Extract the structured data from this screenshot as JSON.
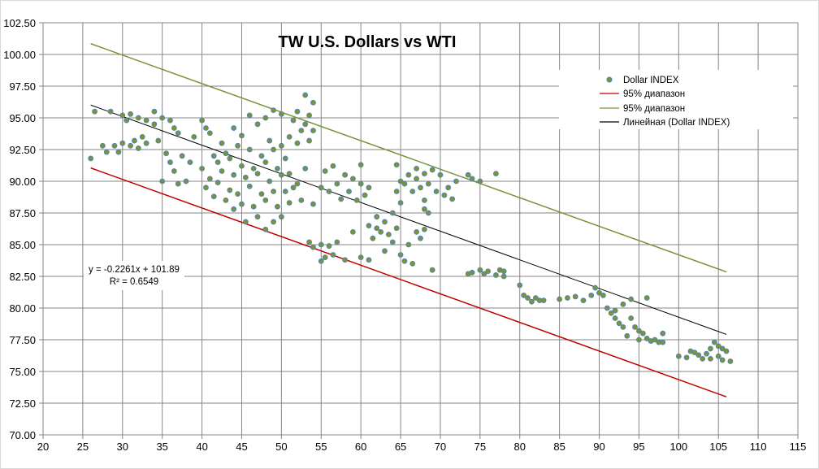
{
  "chart_data": {
    "type": "scatter",
    "title": "TW U.S. Dollars  vs WTI",
    "xlabel": "",
    "ylabel": "",
    "xlim": [
      20,
      115
    ],
    "ylim": [
      70,
      102.5
    ],
    "x_ticks": [
      "20",
      "25",
      "30",
      "35",
      "40",
      "45",
      "50",
      "55",
      "60",
      "65",
      "70",
      "75",
      "80",
      "85",
      "90",
      "95",
      "100",
      "105",
      "110",
      "115"
    ],
    "y_ticks": [
      "70.00",
      "72.50",
      "75.00",
      "77.50",
      "80.00",
      "82.50",
      "85.00",
      "87.50",
      "90.00",
      "92.50",
      "95.00",
      "97.50",
      "100.00",
      "102.50"
    ],
    "grid": true,
    "legend_position": "top-right",
    "legend": [
      {
        "label": "Dollar INDEX",
        "kind": "marker"
      },
      {
        "label": "95% диапазон",
        "kind": "line",
        "color": "#c00000"
      },
      {
        "label": "95% диапазон",
        "kind": "line",
        "color": "#77933c"
      },
      {
        "label": "Линейная (Dollar INDEX)",
        "kind": "line",
        "color": "#000000"
      }
    ],
    "trendline": {
      "equation": "y = -0.2261x + 101.89",
      "r_squared": "R² = 0.6549",
      "slope": -0.2261,
      "intercept": 101.89,
      "x_range": [
        26,
        106
      ],
      "color": "#000000"
    },
    "band_upper": {
      "points": [
        [
          26,
          100.85
        ],
        [
          106,
          82.85
        ]
      ],
      "color": "#77933c"
    },
    "band_lower": {
      "points": [
        [
          26,
          91.05
        ],
        [
          106,
          73.0
        ]
      ],
      "color": "#c00000"
    },
    "marker_fill": "#77933c",
    "marker_edge": "#4f81bd",
    "series": [
      {
        "name": "Dollar INDEX",
        "points": [
          [
            26,
            91.8
          ],
          [
            26.5,
            95.5
          ],
          [
            27.5,
            92.8
          ],
          [
            28,
            92.3
          ],
          [
            28.5,
            95.5
          ],
          [
            29,
            92.8
          ],
          [
            29.5,
            92.3
          ],
          [
            30,
            95.2
          ],
          [
            30,
            93
          ],
          [
            30.5,
            94.8
          ],
          [
            31,
            95.3
          ],
          [
            31,
            92.8
          ],
          [
            31.5,
            93.2
          ],
          [
            32,
            95
          ],
          [
            32,
            92.6
          ],
          [
            32.5,
            93.5
          ],
          [
            33,
            94.8
          ],
          [
            33,
            93
          ],
          [
            34,
            95.5
          ],
          [
            34,
            94.5
          ],
          [
            34.5,
            93.2
          ],
          [
            35,
            95
          ],
          [
            35,
            90
          ],
          [
            35.5,
            92.2
          ],
          [
            36,
            94.8
          ],
          [
            36,
            91.5
          ],
          [
            36.5,
            94.2
          ],
          [
            36.5,
            90.8
          ],
          [
            37,
            93.8
          ],
          [
            37,
            89.8
          ],
          [
            37.5,
            92
          ],
          [
            38,
            90
          ],
          [
            38.5,
            91.5
          ],
          [
            39,
            93.5
          ],
          [
            40,
            94.8
          ],
          [
            40.5,
            94.2
          ],
          [
            40,
            91
          ],
          [
            40.5,
            89.5
          ],
          [
            41,
            93.8
          ],
          [
            41,
            90.2
          ],
          [
            41.5,
            92
          ],
          [
            41.5,
            88.8
          ],
          [
            42,
            91.5
          ],
          [
            42,
            89.9
          ],
          [
            42.5,
            93
          ],
          [
            42.5,
            90.8
          ],
          [
            43,
            92.2
          ],
          [
            43,
            88.5
          ],
          [
            43.5,
            91.8
          ],
          [
            43.5,
            89.3
          ],
          [
            44,
            94.2
          ],
          [
            44,
            90.5
          ],
          [
            44,
            87.8
          ],
          [
            44.5,
            92.8
          ],
          [
            44.5,
            89
          ],
          [
            45,
            93.6
          ],
          [
            45,
            91.2
          ],
          [
            45,
            88.2
          ],
          [
            45.5,
            90.3
          ],
          [
            45.5,
            86.8
          ],
          [
            46,
            95.2
          ],
          [
            46,
            92.5
          ],
          [
            46,
            89.6
          ],
          [
            46.5,
            91
          ],
          [
            46.5,
            88
          ],
          [
            47,
            94.5
          ],
          [
            47,
            90.6
          ],
          [
            47,
            87.2
          ],
          [
            47.5,
            92
          ],
          [
            47.5,
            89
          ],
          [
            48,
            95
          ],
          [
            48,
            91.5
          ],
          [
            48,
            88.5
          ],
          [
            48,
            86.2
          ],
          [
            48.5,
            93.2
          ],
          [
            48.5,
            90
          ],
          [
            49,
            95.6
          ],
          [
            49,
            92.5
          ],
          [
            49,
            89.2
          ],
          [
            49,
            86.8
          ],
          [
            49.5,
            91
          ],
          [
            49.5,
            88
          ],
          [
            50,
            95.3
          ],
          [
            50,
            92.8
          ],
          [
            50,
            90.5
          ],
          [
            50,
            87.2
          ],
          [
            50.5,
            91.8
          ],
          [
            50.5,
            89.2
          ],
          [
            51,
            93.5
          ],
          [
            51,
            90.6
          ],
          [
            51,
            88.3
          ],
          [
            51.5,
            94.8
          ],
          [
            51.5,
            89.5
          ],
          [
            52,
            95.5
          ],
          [
            52,
            93
          ],
          [
            52,
            89.8
          ],
          [
            52.5,
            94
          ],
          [
            52.5,
            88.5
          ],
          [
            53,
            96.8
          ],
          [
            53,
            94.5
          ],
          [
            53,
            91
          ],
          [
            53.5,
            95.2
          ],
          [
            53.5,
            93.2
          ],
          [
            54,
            96.2
          ],
          [
            54,
            94
          ],
          [
            54,
            88.2
          ],
          [
            53.5,
            85.2
          ],
          [
            54,
            84.8
          ],
          [
            55,
            85
          ],
          [
            55.5,
            84
          ],
          [
            56,
            84.9
          ],
          [
            56.5,
            84.2
          ],
          [
            57,
            85.2
          ],
          [
            58,
            83.8
          ],
          [
            55,
            83.7
          ],
          [
            55,
            89.5
          ],
          [
            55.5,
            90.8
          ],
          [
            56,
            89.2
          ],
          [
            56.5,
            91.2
          ],
          [
            57,
            89.8
          ],
          [
            57.5,
            88.6
          ],
          [
            58,
            90.5
          ],
          [
            58.5,
            89.2
          ],
          [
            59,
            90.2
          ],
          [
            59.5,
            88.5
          ],
          [
            60,
            89.8
          ],
          [
            60,
            91.3
          ],
          [
            60.5,
            88.9
          ],
          [
            61,
            89.5
          ],
          [
            59,
            86
          ],
          [
            60,
            84
          ],
          [
            61,
            83.8
          ],
          [
            62,
            86.3
          ],
          [
            61,
            86.5
          ],
          [
            61.5,
            85.5
          ],
          [
            62,
            87.2
          ],
          [
            62.5,
            86
          ],
          [
            63,
            86.8
          ],
          [
            63,
            84.5
          ],
          [
            63.5,
            85.8
          ],
          [
            64,
            87.5
          ],
          [
            64,
            85.2
          ],
          [
            64.5,
            86.3
          ],
          [
            65,
            84.2
          ],
          [
            65,
            88.3
          ],
          [
            65.5,
            83.7
          ],
          [
            66,
            85
          ],
          [
            66.5,
            83.5
          ],
          [
            67,
            86
          ],
          [
            67.5,
            85.5
          ],
          [
            68,
            86.2
          ],
          [
            68,
            88.5
          ],
          [
            69,
            83
          ],
          [
            64.5,
            89.2
          ],
          [
            64.5,
            91.3
          ],
          [
            65,
            90
          ],
          [
            65.5,
            89.8
          ],
          [
            66,
            90.5
          ],
          [
            66.5,
            89.2
          ],
          [
            67,
            91
          ],
          [
            67,
            90.2
          ],
          [
            67.5,
            89.5
          ],
          [
            68,
            90.6
          ],
          [
            68.5,
            89.8
          ],
          [
            69,
            90.9
          ],
          [
            69.5,
            89.2
          ],
          [
            70,
            90.5
          ],
          [
            70.5,
            88.9
          ],
          [
            71,
            89.5
          ],
          [
            71.5,
            88.6
          ],
          [
            72,
            90
          ],
          [
            73.5,
            90.5
          ],
          [
            74,
            90.2
          ],
          [
            75,
            90
          ],
          [
            77,
            90.6
          ],
          [
            68,
            87.8
          ],
          [
            68.5,
            87.5
          ],
          [
            73.5,
            82.7
          ],
          [
            74,
            82.8
          ],
          [
            75,
            83
          ],
          [
            75.5,
            82.7
          ],
          [
            76,
            82.9
          ],
          [
            77,
            82.6
          ],
          [
            77.5,
            83
          ],
          [
            78,
            82.5
          ],
          [
            78,
            82.9
          ],
          [
            80,
            81.8
          ],
          [
            80.5,
            81
          ],
          [
            81,
            80.8
          ],
          [
            81.5,
            80.5
          ],
          [
            82,
            80.8
          ],
          [
            82.5,
            80.6
          ],
          [
            83,
            80.6
          ],
          [
            85,
            80.7
          ],
          [
            86,
            80.8
          ],
          [
            87,
            80.9
          ],
          [
            88,
            80.6
          ],
          [
            89,
            81
          ],
          [
            89.5,
            81.6
          ],
          [
            90,
            81.2
          ],
          [
            90.5,
            81
          ],
          [
            91,
            80
          ],
          [
            91.5,
            79.6
          ],
          [
            92,
            79.8
          ],
          [
            92,
            79.2
          ],
          [
            92.5,
            78.8
          ],
          [
            93,
            80.3
          ],
          [
            93,
            78.5
          ],
          [
            93.5,
            77.8
          ],
          [
            94,
            80.7
          ],
          [
            94,
            79.2
          ],
          [
            94.5,
            78.5
          ],
          [
            95,
            77.5
          ],
          [
            95,
            78.2
          ],
          [
            95.5,
            78
          ],
          [
            96,
            80.8
          ],
          [
            96,
            77.6
          ],
          [
            96.5,
            77.4
          ],
          [
            97,
            77.5
          ],
          [
            97.5,
            77.3
          ],
          [
            98,
            78
          ],
          [
            98,
            77.3
          ],
          [
            100,
            76.2
          ],
          [
            101,
            76.1
          ],
          [
            101.5,
            76.6
          ],
          [
            102,
            76.5
          ],
          [
            102.5,
            76.3
          ],
          [
            103,
            76
          ],
          [
            103.5,
            76.4
          ],
          [
            104,
            76
          ],
          [
            104,
            76.8
          ],
          [
            104.5,
            77.3
          ],
          [
            105,
            76.2
          ],
          [
            105,
            77
          ],
          [
            105.5,
            76.8
          ],
          [
            105.5,
            75.9
          ],
          [
            106,
            76.6
          ],
          [
            106.5,
            75.8
          ]
        ]
      }
    ]
  }
}
